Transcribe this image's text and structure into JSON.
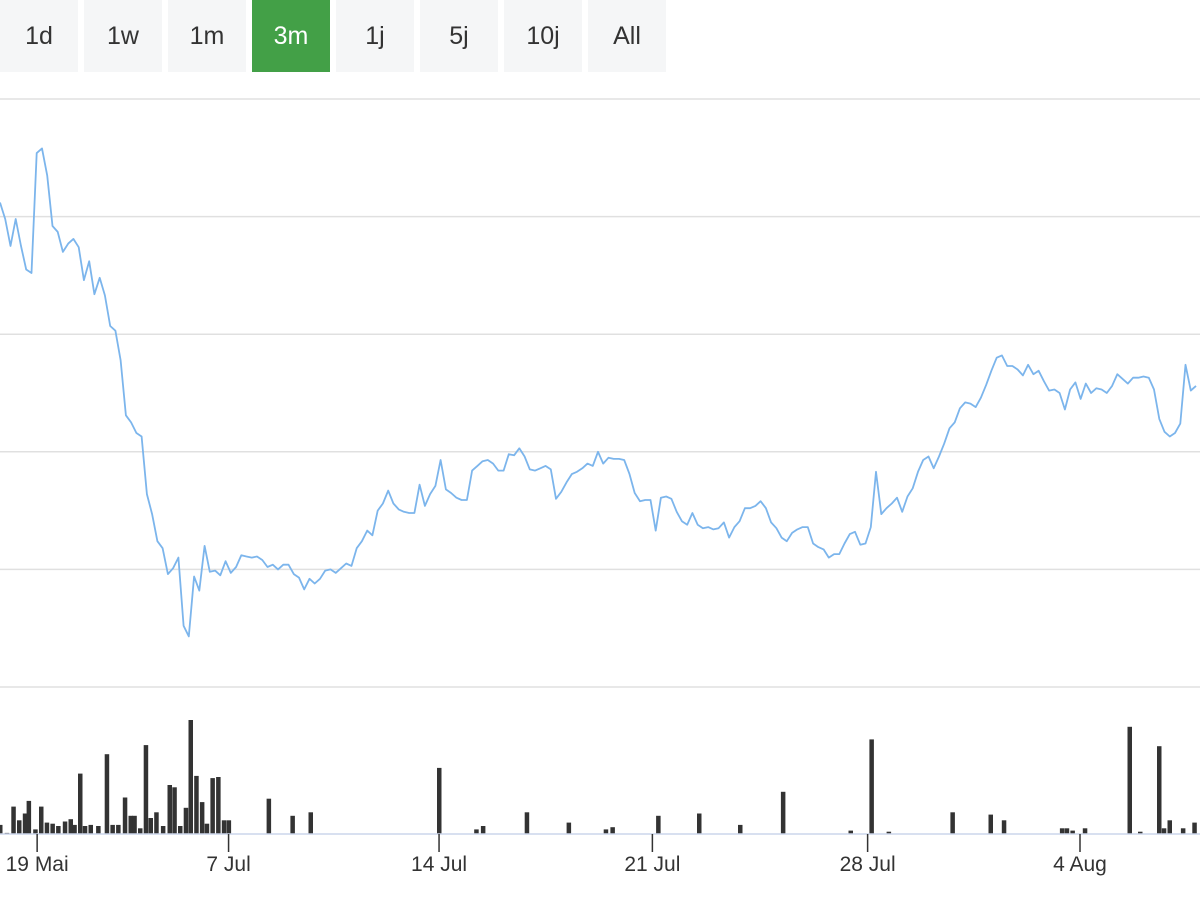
{
  "range_selector": {
    "buttons": [
      "1d",
      "1w",
      "1m",
      "3m",
      "1j",
      "5j",
      "10j",
      "All"
    ],
    "active": "3m"
  },
  "colors": {
    "active_tab": "#43a047",
    "tab_bg": "#f5f6f7",
    "price_line": "#7cb5ec",
    "volume_bar": "#333333",
    "grid": "#e0e0e0",
    "axis": "#ccd6eb"
  },
  "chart_data": {
    "type": "line",
    "title": "",
    "xlabel": "",
    "ylabel": "",
    "grid": true,
    "x_ticks": [
      "19 Mai",
      "7 Jul",
      "14 Jul",
      "21 Jul",
      "28 Jul",
      "4 Aug"
    ],
    "price_series": {
      "units": "relative price (0 = lowest gridline, 5 = top gridline); axis labels not shown",
      "ylim": [
        0,
        5
      ],
      "values": [
        4.12,
        3.98,
        3.75,
        3.98,
        3.75,
        3.55,
        3.52,
        4.54,
        4.58,
        4.35,
        3.92,
        3.87,
        3.7,
        3.77,
        3.81,
        3.74,
        3.46,
        3.62,
        3.34,
        3.48,
        3.33,
        3.07,
        3.03,
        2.78,
        2.31,
        2.25,
        2.16,
        2.13,
        1.64,
        1.47,
        1.24,
        1.18,
        0.96,
        1.01,
        1.1,
        0.52,
        0.43,
        0.94,
        0.82,
        1.2,
        0.98,
        0.99,
        0.95,
        1.07,
        0.97,
        1.02,
        1.12,
        1.11,
        1.1,
        1.11,
        1.08,
        1.02,
        1.04,
        1.0,
        1.04,
        1.04,
        0.96,
        0.93,
        0.83,
        0.92,
        0.88,
        0.92,
        0.99,
        1.0,
        0.97,
        1.01,
        1.05,
        1.03,
        1.18,
        1.24,
        1.33,
        1.29,
        1.5,
        1.56,
        1.67,
        1.56,
        1.51,
        1.49,
        1.48,
        1.48,
        1.72,
        1.54,
        1.64,
        1.71,
        1.93,
        1.68,
        1.65,
        1.61,
        1.59,
        1.59,
        1.84,
        1.88,
        1.92,
        1.93,
        1.9,
        1.84,
        1.84,
        1.98,
        1.97,
        2.03,
        1.96,
        1.85,
        1.84,
        1.86,
        1.88,
        1.85,
        1.6,
        1.66,
        1.74,
        1.81,
        1.83,
        1.86,
        1.9,
        1.88,
        2.0,
        1.9,
        1.95,
        1.94,
        1.94,
        1.93,
        1.81,
        1.65,
        1.58,
        1.59,
        1.59,
        1.33,
        1.61,
        1.62,
        1.6,
        1.49,
        1.41,
        1.38,
        1.48,
        1.38,
        1.35,
        1.36,
        1.34,
        1.35,
        1.4,
        1.27,
        1.36,
        1.41,
        1.52,
        1.52,
        1.54,
        1.58,
        1.52,
        1.4,
        1.35,
        1.27,
        1.24,
        1.31,
        1.34,
        1.36,
        1.36,
        1.22,
        1.19,
        1.17,
        1.1,
        1.13,
        1.13,
        1.22,
        1.3,
        1.32,
        1.21,
        1.22,
        1.36,
        1.83,
        1.47,
        1.52,
        1.56,
        1.61,
        1.49,
        1.62,
        1.69,
        1.83,
        1.93,
        1.96,
        1.86,
        1.96,
        2.07,
        2.2,
        2.25,
        2.37,
        2.42,
        2.41,
        2.38,
        2.46,
        2.57,
        2.69,
        2.8,
        2.82,
        2.73,
        2.73,
        2.7,
        2.65,
        2.74,
        2.66,
        2.69,
        2.6,
        2.52,
        2.53,
        2.5,
        2.36,
        2.53,
        2.59,
        2.45,
        2.58,
        2.5,
        2.54,
        2.53,
        2.5,
        2.56,
        2.66,
        2.62,
        2.58,
        2.63,
        2.63,
        2.64,
        2.63,
        2.53,
        2.28,
        2.17,
        2.13,
        2.16,
        2.24,
        2.74,
        2.52,
        2.56
      ]
    },
    "volume_series": {
      "units": "relative volume (1 = tallest bar); axis labels not shown",
      "bars": [
        [
          0.0,
          0.08
        ],
        [
          0.007,
          0.01
        ],
        [
          0.014,
          0.24
        ],
        [
          0.02,
          0.12
        ],
        [
          0.026,
          0.18
        ],
        [
          0.03,
          0.29
        ],
        [
          0.037,
          0.04
        ],
        [
          0.043,
          0.24
        ],
        [
          0.049,
          0.1
        ],
        [
          0.055,
          0.09
        ],
        [
          0.061,
          0.07
        ],
        [
          0.068,
          0.11
        ],
        [
          0.074,
          0.13
        ],
        [
          0.078,
          0.08
        ],
        [
          0.084,
          0.53
        ],
        [
          0.089,
          0.07
        ],
        [
          0.095,
          0.08
        ],
        [
          0.103,
          0.07
        ],
        [
          0.112,
          0.7
        ],
        [
          0.118,
          0.08
        ],
        [
          0.124,
          0.08
        ],
        [
          0.131,
          0.32
        ],
        [
          0.137,
          0.16
        ],
        [
          0.141,
          0.16
        ],
        [
          0.147,
          0.05
        ],
        [
          0.153,
          0.78
        ],
        [
          0.158,
          0.14
        ],
        [
          0.164,
          0.19
        ],
        [
          0.171,
          0.07
        ],
        [
          0.178,
          0.43
        ],
        [
          0.183,
          0.41
        ],
        [
          0.189,
          0.07
        ],
        [
          0.195,
          0.23
        ],
        [
          0.2,
          1.0
        ],
        [
          0.206,
          0.51
        ],
        [
          0.212,
          0.28
        ],
        [
          0.217,
          0.09
        ],
        [
          0.223,
          0.49
        ],
        [
          0.229,
          0.5
        ],
        [
          0.235,
          0.12
        ],
        [
          0.24,
          0.12
        ],
        [
          0.282,
          0.31
        ],
        [
          0.307,
          0.16
        ],
        [
          0.326,
          0.19
        ],
        [
          0.461,
          0.58
        ],
        [
          0.5,
          0.04
        ],
        [
          0.507,
          0.07
        ],
        [
          0.553,
          0.19
        ],
        [
          0.597,
          0.1
        ],
        [
          0.636,
          0.04
        ],
        [
          0.643,
          0.06
        ],
        [
          0.691,
          0.16
        ],
        [
          0.734,
          0.18
        ],
        [
          0.777,
          0.08
        ],
        [
          0.822,
          0.37
        ],
        [
          0.893,
          0.03
        ],
        [
          0.915,
          0.83
        ],
        [
          0.933,
          0.02
        ],
        [
          1.0,
          0.19
        ],
        [
          1.04,
          0.17
        ],
        [
          1.054,
          0.12
        ],
        [
          1.115,
          0.05
        ],
        [
          1.12,
          0.05
        ],
        [
          1.126,
          0.03
        ],
        [
          1.139,
          0.05
        ],
        [
          1.186,
          0.94
        ],
        [
          1.197,
          0.02
        ],
        [
          1.217,
          0.77
        ],
        [
          1.222,
          0.05
        ],
        [
          1.228,
          0.12
        ],
        [
          1.242,
          0.05
        ],
        [
          1.254,
          0.1
        ]
      ]
    },
    "x_tick_positions": [
      0.039,
      0.24,
      0.461,
      0.685,
      0.911,
      1.134
    ]
  }
}
